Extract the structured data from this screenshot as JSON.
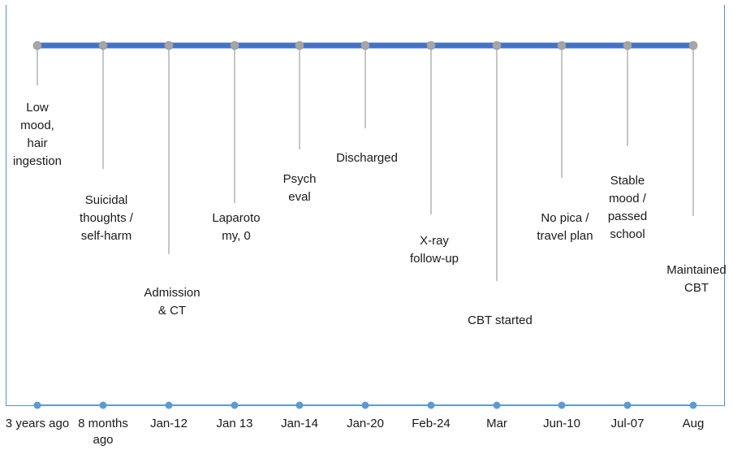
{
  "colors": {
    "main_line": "#4472c4",
    "top_marker": "#a6a6a6",
    "stem": "#8c8c8c",
    "axis": "#5b9bd5",
    "frame": "#5b8fc7"
  },
  "events": [
    {
      "date": "3 years ago",
      "text": "Low\nmood,\nhair\ningestion"
    },
    {
      "date": "8 months\nago",
      "text": "Suicidal\nthoughts /\nself-harm"
    },
    {
      "date": "Jan-12",
      "text": "Admission\n& CT"
    },
    {
      "date": "Jan 13",
      "text": "Laparoto\nmy, 0"
    },
    {
      "date": "Jan-14",
      "text": "Psych\neval"
    },
    {
      "date": "Jan-20",
      "text": "Discharged"
    },
    {
      "date": "Feb-24",
      "text": "X-ray\nfollow-up"
    },
    {
      "date": "Mar",
      "text": "CBT started"
    },
    {
      "date": "Jun-10",
      "text": "No pica /\ntravel plan"
    },
    {
      "date": "Jul-07",
      "text": "Stable\nmood /\npassed\nschool"
    },
    {
      "date": "Aug",
      "text": "Maintained\nCBT"
    }
  ]
}
